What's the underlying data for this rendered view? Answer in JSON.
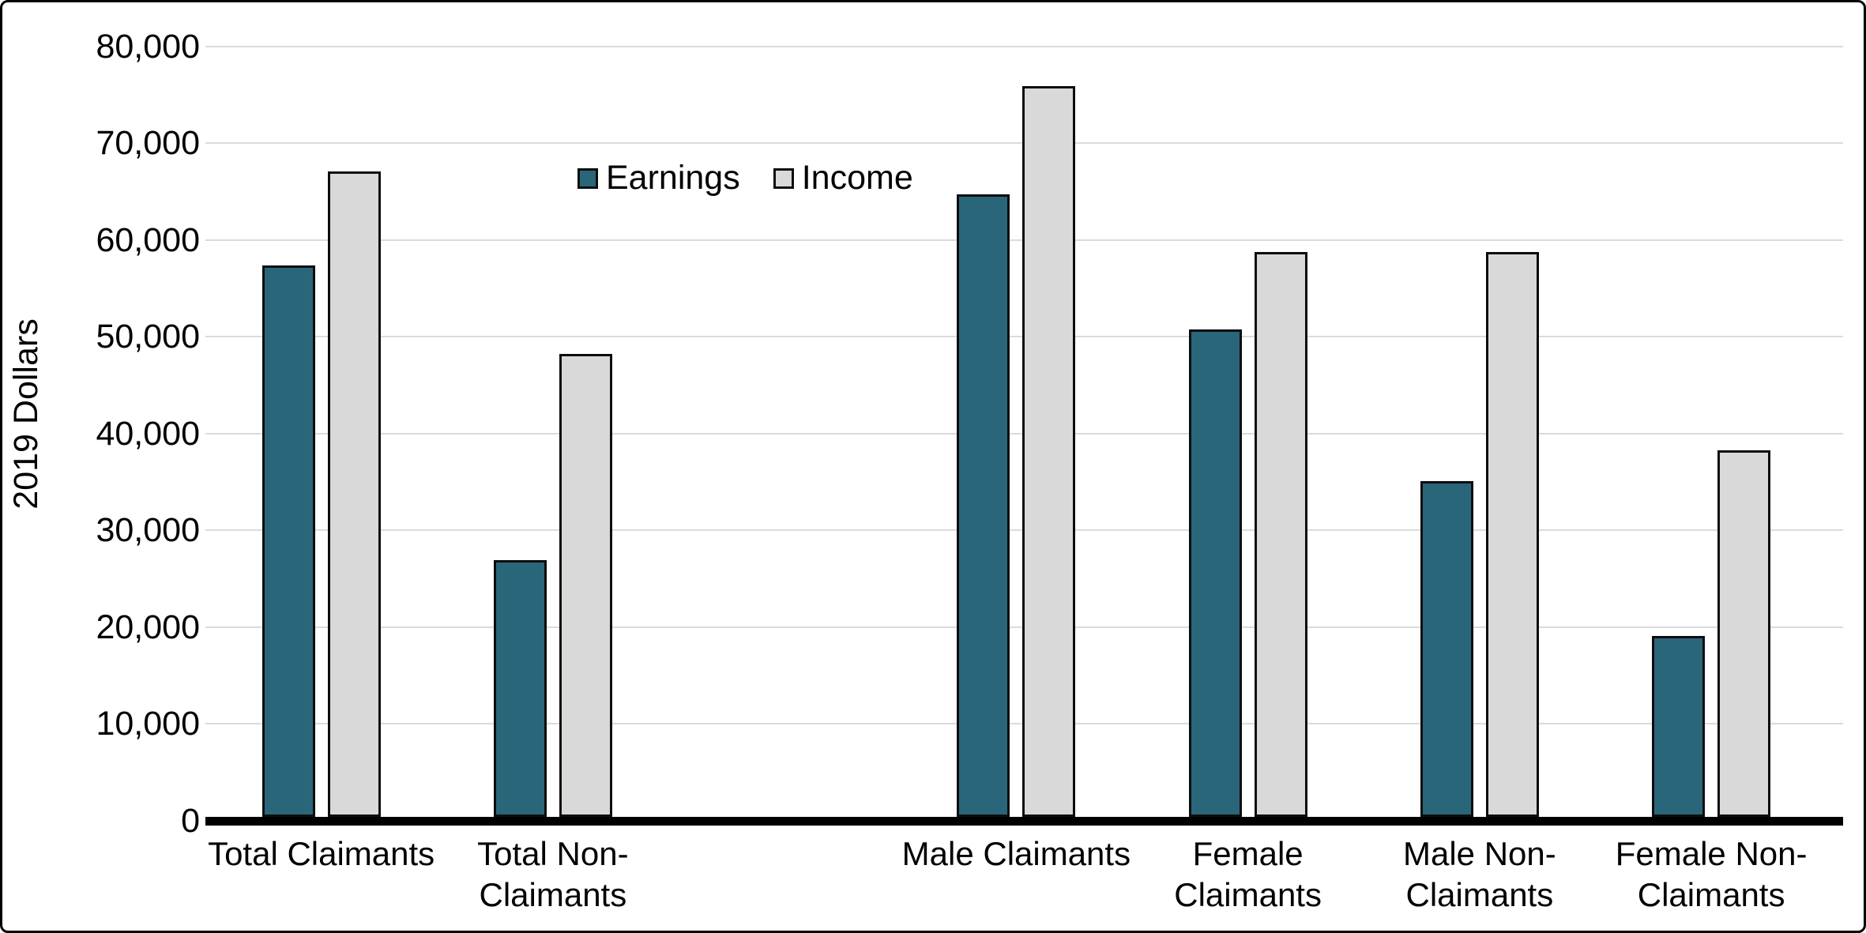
{
  "figure": {
    "y_axis_title": "2019 Dollars"
  },
  "legend": [
    {
      "name": "Earnings",
      "color": "#29667A"
    },
    {
      "name": "Income",
      "color": "#D9D9D9"
    }
  ],
  "chart_data": {
    "type": "bar",
    "title": "",
    "xlabel": "",
    "ylabel": "2019 Dollars",
    "ylim": [
      0,
      80000
    ],
    "grid": true,
    "legend_position": "top-center",
    "y_ticks": [
      {
        "value": 0,
        "label": "0"
      },
      {
        "value": 10000,
        "label": "10,000"
      },
      {
        "value": 20000,
        "label": "20,000"
      },
      {
        "value": 30000,
        "label": "30,000"
      },
      {
        "value": 40000,
        "label": "40,000"
      },
      {
        "value": 50000,
        "label": "50,000"
      },
      {
        "value": 60000,
        "label": "60,000"
      },
      {
        "value": 70000,
        "label": "70,000"
      },
      {
        "value": 80000,
        "label": "80,000"
      }
    ],
    "categories": [
      {
        "id": "total-claimants",
        "label": "Total Claimants"
      },
      {
        "id": "total-non-claimants",
        "label": "Total Non-\nClaimants"
      },
      {
        "id": "male-claimants",
        "label": "Male Claimants"
      },
      {
        "id": "female-claimants",
        "label": "Female\nClaimants"
      },
      {
        "id": "male-non-claimants",
        "label": "Male Non-\nClaimants"
      },
      {
        "id": "female-non-claimants",
        "label": "Female Non-\nClaimants"
      }
    ],
    "category_slots": [
      0,
      1,
      3,
      4,
      5,
      6
    ],
    "slot_count": 7,
    "series": [
      {
        "name": "Earnings",
        "color": "#29667A",
        "values": [
          57000,
          26500,
          64300,
          50400,
          34700,
          18700
        ]
      },
      {
        "name": "Income",
        "color": "#D9D9D9",
        "values": [
          66700,
          47800,
          75500,
          58400,
          58400,
          37900
        ]
      }
    ]
  }
}
